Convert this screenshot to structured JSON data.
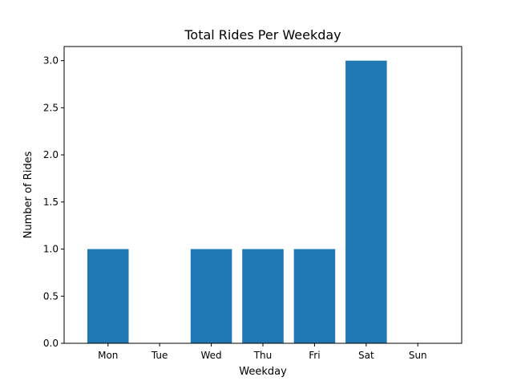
{
  "chart_data": {
    "type": "bar",
    "title": "Total Rides Per Weekday",
    "xlabel": "Weekday",
    "ylabel": "Number of Rides",
    "categories": [
      "Mon",
      "Tue",
      "Wed",
      "Thu",
      "Fri",
      "Sat",
      "Sun"
    ],
    "values": [
      1,
      0,
      1,
      1,
      1,
      3,
      0
    ],
    "ylim": [
      0,
      3.15
    ],
    "yticks": [
      "0.0",
      "0.5",
      "1.0",
      "1.5",
      "2.0",
      "2.5",
      "3.0"
    ],
    "bar_color": "#1f77b4",
    "grid": false,
    "legend": "none"
  }
}
